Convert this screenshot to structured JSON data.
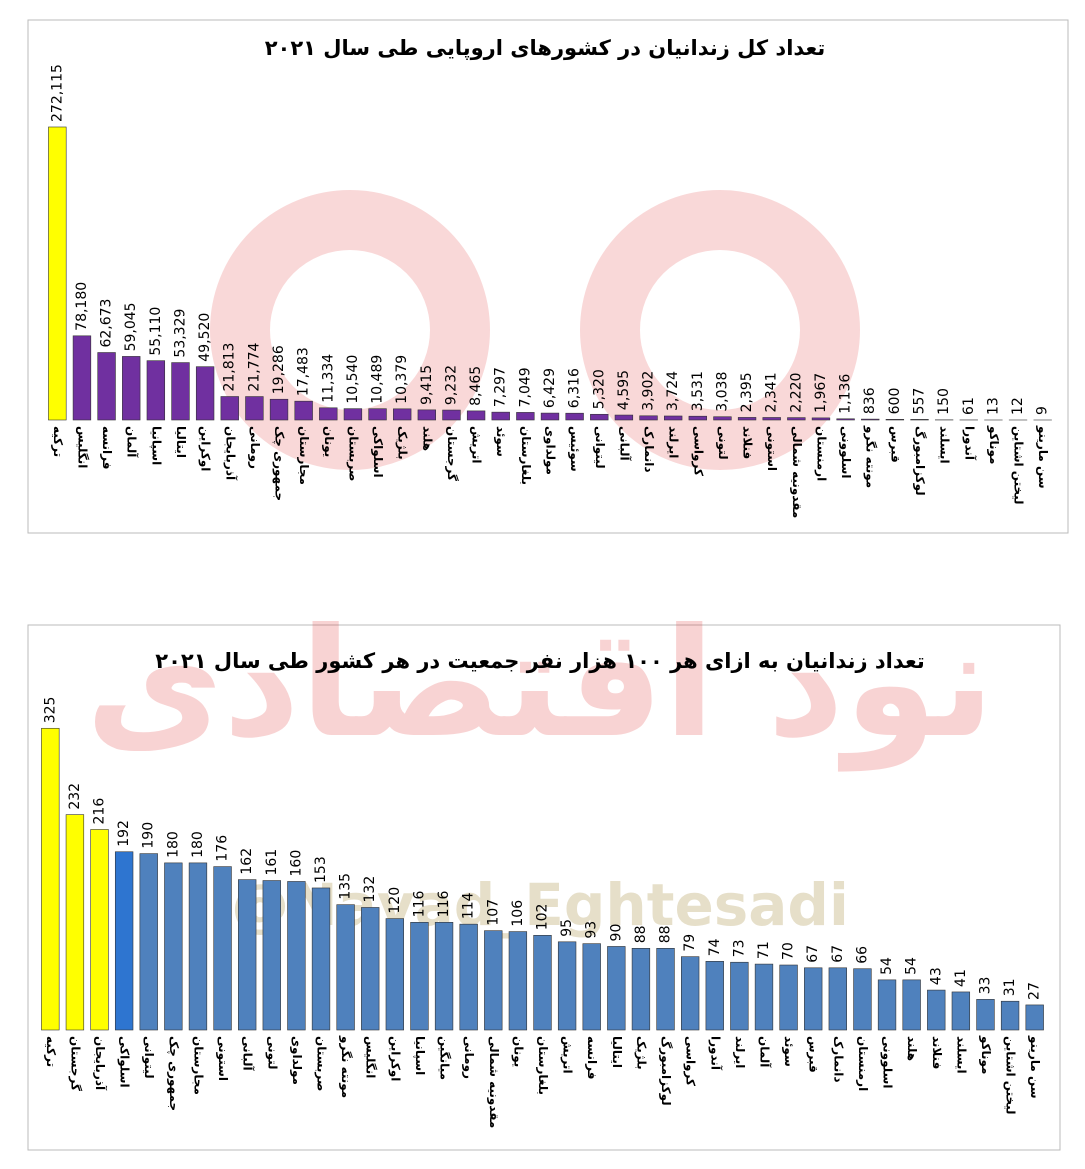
{
  "chart_data": [
    {
      "type": "bar",
      "title": "تعداد کل زندانیان در کشورهای اروپایی طی سال ۲۰۲۱",
      "categories": [
        "ترکیه",
        "انگلیس",
        "فرانسه",
        "آلمان",
        "اسپانیا",
        "ایتالیا",
        "اوکراین",
        "آذربایجان",
        "رومانی",
        "جمهوری چک",
        "مجارستان",
        "یونان",
        "صربستان",
        "اسلواکی",
        "بلژیک",
        "هلند",
        "گرجستان",
        "اتریش",
        "سوئد",
        "بلغارستان",
        "مولداوی",
        "سوئیس",
        "لیتوانی",
        "آلبانی",
        "دانمارک",
        "ایرلند",
        "کرواسی",
        "لتونی",
        "فنلاند",
        "استونی",
        "مقدونیه شمالی",
        "ارمنستان",
        "اسلوونی",
        "مونته نگرو",
        "قبرس",
        "لوکزامبورگ",
        "ایسلند",
        "آندورا",
        "موناکو",
        "لیختن اشتاین",
        "سن مارینو"
      ],
      "values": [
        272115,
        78180,
        62673,
        59045,
        55110,
        53329,
        49520,
        21813,
        21774,
        19286,
        17483,
        11334,
        10540,
        10489,
        10379,
        9415,
        9232,
        8465,
        7297,
        7049,
        6429,
        6316,
        5320,
        4595,
        3902,
        3724,
        3531,
        3038,
        2395,
        2341,
        2220,
        1967,
        1136,
        836,
        600,
        557,
        150,
        61,
        13,
        12,
        9
      ],
      "value_labels": [
        "272,115",
        "78,180",
        "62,673",
        "59,045",
        "55,110",
        "53,329",
        "49,520",
        "21,813",
        "21,774",
        "19,286",
        "17,483",
        "11,334",
        "10,540",
        "10,489",
        "10,379",
        "9,415",
        "9,232",
        "8,465",
        "7,297",
        "7,049",
        "6,429",
        "6,316",
        "5,320",
        "4,595",
        "3,902",
        "3,724",
        "3,531",
        "3,038",
        "2,395",
        "2,341",
        "2,220",
        "1,967",
        "1,136",
        "836",
        "600",
        "557",
        "150",
        "61",
        "13",
        "12",
        "9"
      ],
      "colors": [
        "#ffff00",
        "#7030a0",
        "#7030a0",
        "#7030a0",
        "#7030a0",
        "#7030a0",
        "#7030a0",
        "#7030a0",
        "#7030a0",
        "#7030a0",
        "#7030a0",
        "#7030a0",
        "#7030a0",
        "#7030a0",
        "#7030a0",
        "#7030a0",
        "#7030a0",
        "#7030a0",
        "#7030a0",
        "#7030a0",
        "#7030a0",
        "#7030a0",
        "#7030a0",
        "#7030a0",
        "#7030a0",
        "#7030a0",
        "#7030a0",
        "#7030a0",
        "#7030a0",
        "#7030a0",
        "#7030a0",
        "#7030a0",
        "#7030a0",
        "#7030a0",
        "#7030a0",
        "#7030a0",
        "#7030a0",
        "#7030a0",
        "#7030a0",
        "#7030a0",
        "#7030a0"
      ],
      "ylim": [
        0,
        280000
      ]
    },
    {
      "type": "bar",
      "title": "تعداد زندانیان به ازای هر ۱۰۰ هزار نفر جمعیت در هر کشور طی سال ۲۰۲۱",
      "categories": [
        "ترکیه",
        "گرجستان",
        "آذربایجان",
        "اسلواکی",
        "لیتوانی",
        "جمهوری چک",
        "مجارستان",
        "استونی",
        "آلبانی",
        "لتونی",
        "مولداوی",
        "صربستان",
        "مونته نگرو",
        "انگلیس",
        "اوکراین",
        "اسپانیا",
        "میانگین",
        "رومانی",
        "مقدونیه شمالی",
        "یونان",
        "بلغارستان",
        "اتریش",
        "فرانسه",
        "ایتالیا",
        "بلژیک",
        "لوکزامبورگ",
        "کرواسی",
        "آندورا",
        "ایرلند",
        "آلمان",
        "سوئد",
        "قبرس",
        "دانمارک",
        "ارمنستان",
        "اسلوونی",
        "هلند",
        "فنلاند",
        "ایسلند",
        "موناکو",
        "لیختن اشتاین",
        "سن مارینو"
      ],
      "values": [
        325,
        232,
        216,
        192,
        190,
        180,
        180,
        176,
        162,
        161,
        160,
        153,
        135,
        132,
        120,
        116,
        116,
        114,
        107,
        106,
        102,
        95,
        93,
        90,
        88,
        88,
        79,
        74,
        73,
        71,
        70,
        67,
        67,
        66,
        54,
        54,
        43,
        41,
        33,
        31,
        27
      ],
      "colors": [
        "#ffff00",
        "#ffff00",
        "#ffff00",
        "#2e75d0",
        "#4f81bd",
        "#4f81bd",
        "#4f81bd",
        "#4f81bd",
        "#4f81bd",
        "#4f81bd",
        "#4f81bd",
        "#4f81bd",
        "#4f81bd",
        "#4f81bd",
        "#4f81bd",
        "#4f81bd",
        "#4f81bd",
        "#4f81bd",
        "#4f81bd",
        "#4f81bd",
        "#4f81bd",
        "#4f81bd",
        "#4f81bd",
        "#4f81bd",
        "#4f81bd",
        "#4f81bd",
        "#4f81bd",
        "#4f81bd",
        "#4f81bd",
        "#4f81bd",
        "#4f81bd",
        "#4f81bd",
        "#4f81bd",
        "#4f81bd",
        "#4f81bd",
        "#4f81bd",
        "#4f81bd",
        "#4f81bd",
        "#4f81bd",
        "#4f81bd",
        "#4f81bd"
      ],
      "ylim": [
        0,
        335
      ]
    }
  ],
  "watermark": {
    "handle": "@Navad_Eghtesadi",
    "brand": "نود اقتصادی"
  }
}
